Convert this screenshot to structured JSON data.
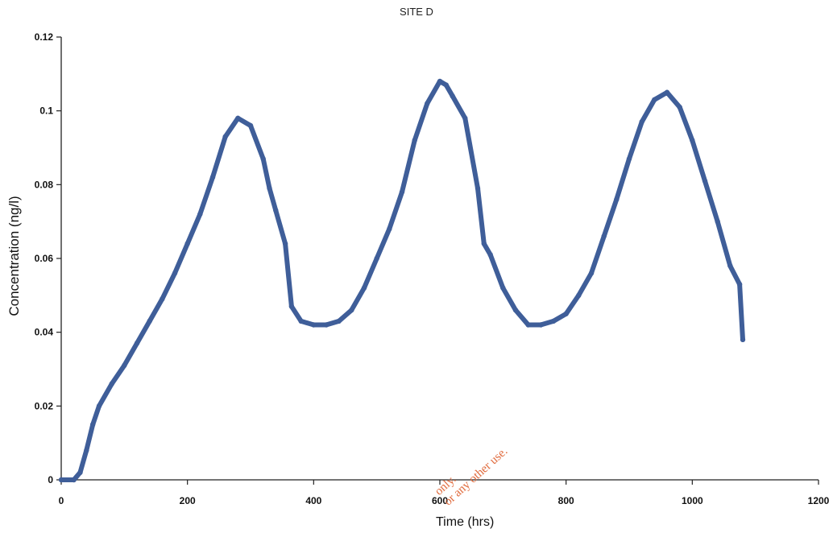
{
  "chart_data": {
    "type": "line",
    "title": "SITE D",
    "xlabel": "Time (hrs)",
    "ylabel": "Concentration (ng/l)",
    "xlim": [
      0,
      1200
    ],
    "ylim": [
      0,
      0.12
    ],
    "x_ticks": [
      0,
      200,
      400,
      600,
      800,
      1000,
      1200
    ],
    "y_ticks": [
      0,
      0.02,
      0.04,
      0.06,
      0.08,
      0.1,
      0.12
    ],
    "x_tick_labels": [
      "0",
      "200",
      "400",
      "600",
      "800",
      "1000",
      "1200"
    ],
    "y_tick_labels": [
      "0",
      "0.02",
      "0.04",
      "0.06",
      "0.08",
      "0.1",
      "0.12"
    ],
    "grid": false,
    "legend": "none",
    "series_color": "#3f5e99",
    "series": [
      {
        "x": [
          0,
          20,
          30,
          40,
          50,
          60,
          80,
          100,
          120,
          140,
          160,
          180,
          200,
          220,
          240,
          260,
          280,
          300,
          320,
          330,
          340,
          355,
          365,
          380,
          400,
          420,
          440,
          460,
          480,
          500,
          520,
          540,
          560,
          580,
          600,
          610,
          620,
          640,
          660,
          670,
          680,
          700,
          720,
          740,
          760,
          780,
          800,
          820,
          840,
          860,
          880,
          900,
          920,
          940,
          960,
          980,
          1000,
          1020,
          1040,
          1060,
          1075,
          1080
        ],
        "y": [
          0,
          0,
          0.002,
          0.008,
          0.015,
          0.02,
          0.026,
          0.031,
          0.037,
          0.043,
          0.049,
          0.056,
          0.064,
          0.072,
          0.082,
          0.093,
          0.098,
          0.096,
          0.087,
          0.079,
          0.073,
          0.064,
          0.047,
          0.043,
          0.042,
          0.042,
          0.043,
          0.046,
          0.052,
          0.06,
          0.068,
          0.078,
          0.092,
          0.102,
          0.108,
          0.107,
          0.104,
          0.098,
          0.079,
          0.064,
          0.061,
          0.052,
          0.046,
          0.042,
          0.042,
          0.043,
          0.045,
          0.05,
          0.056,
          0.066,
          0.076,
          0.087,
          0.097,
          0.103,
          0.105,
          0.101,
          0.092,
          0.081,
          0.07,
          0.058,
          0.053,
          0.038
        ]
      }
    ]
  },
  "watermark": {
    "line1": "only.",
    "line2": "or any other use."
  }
}
